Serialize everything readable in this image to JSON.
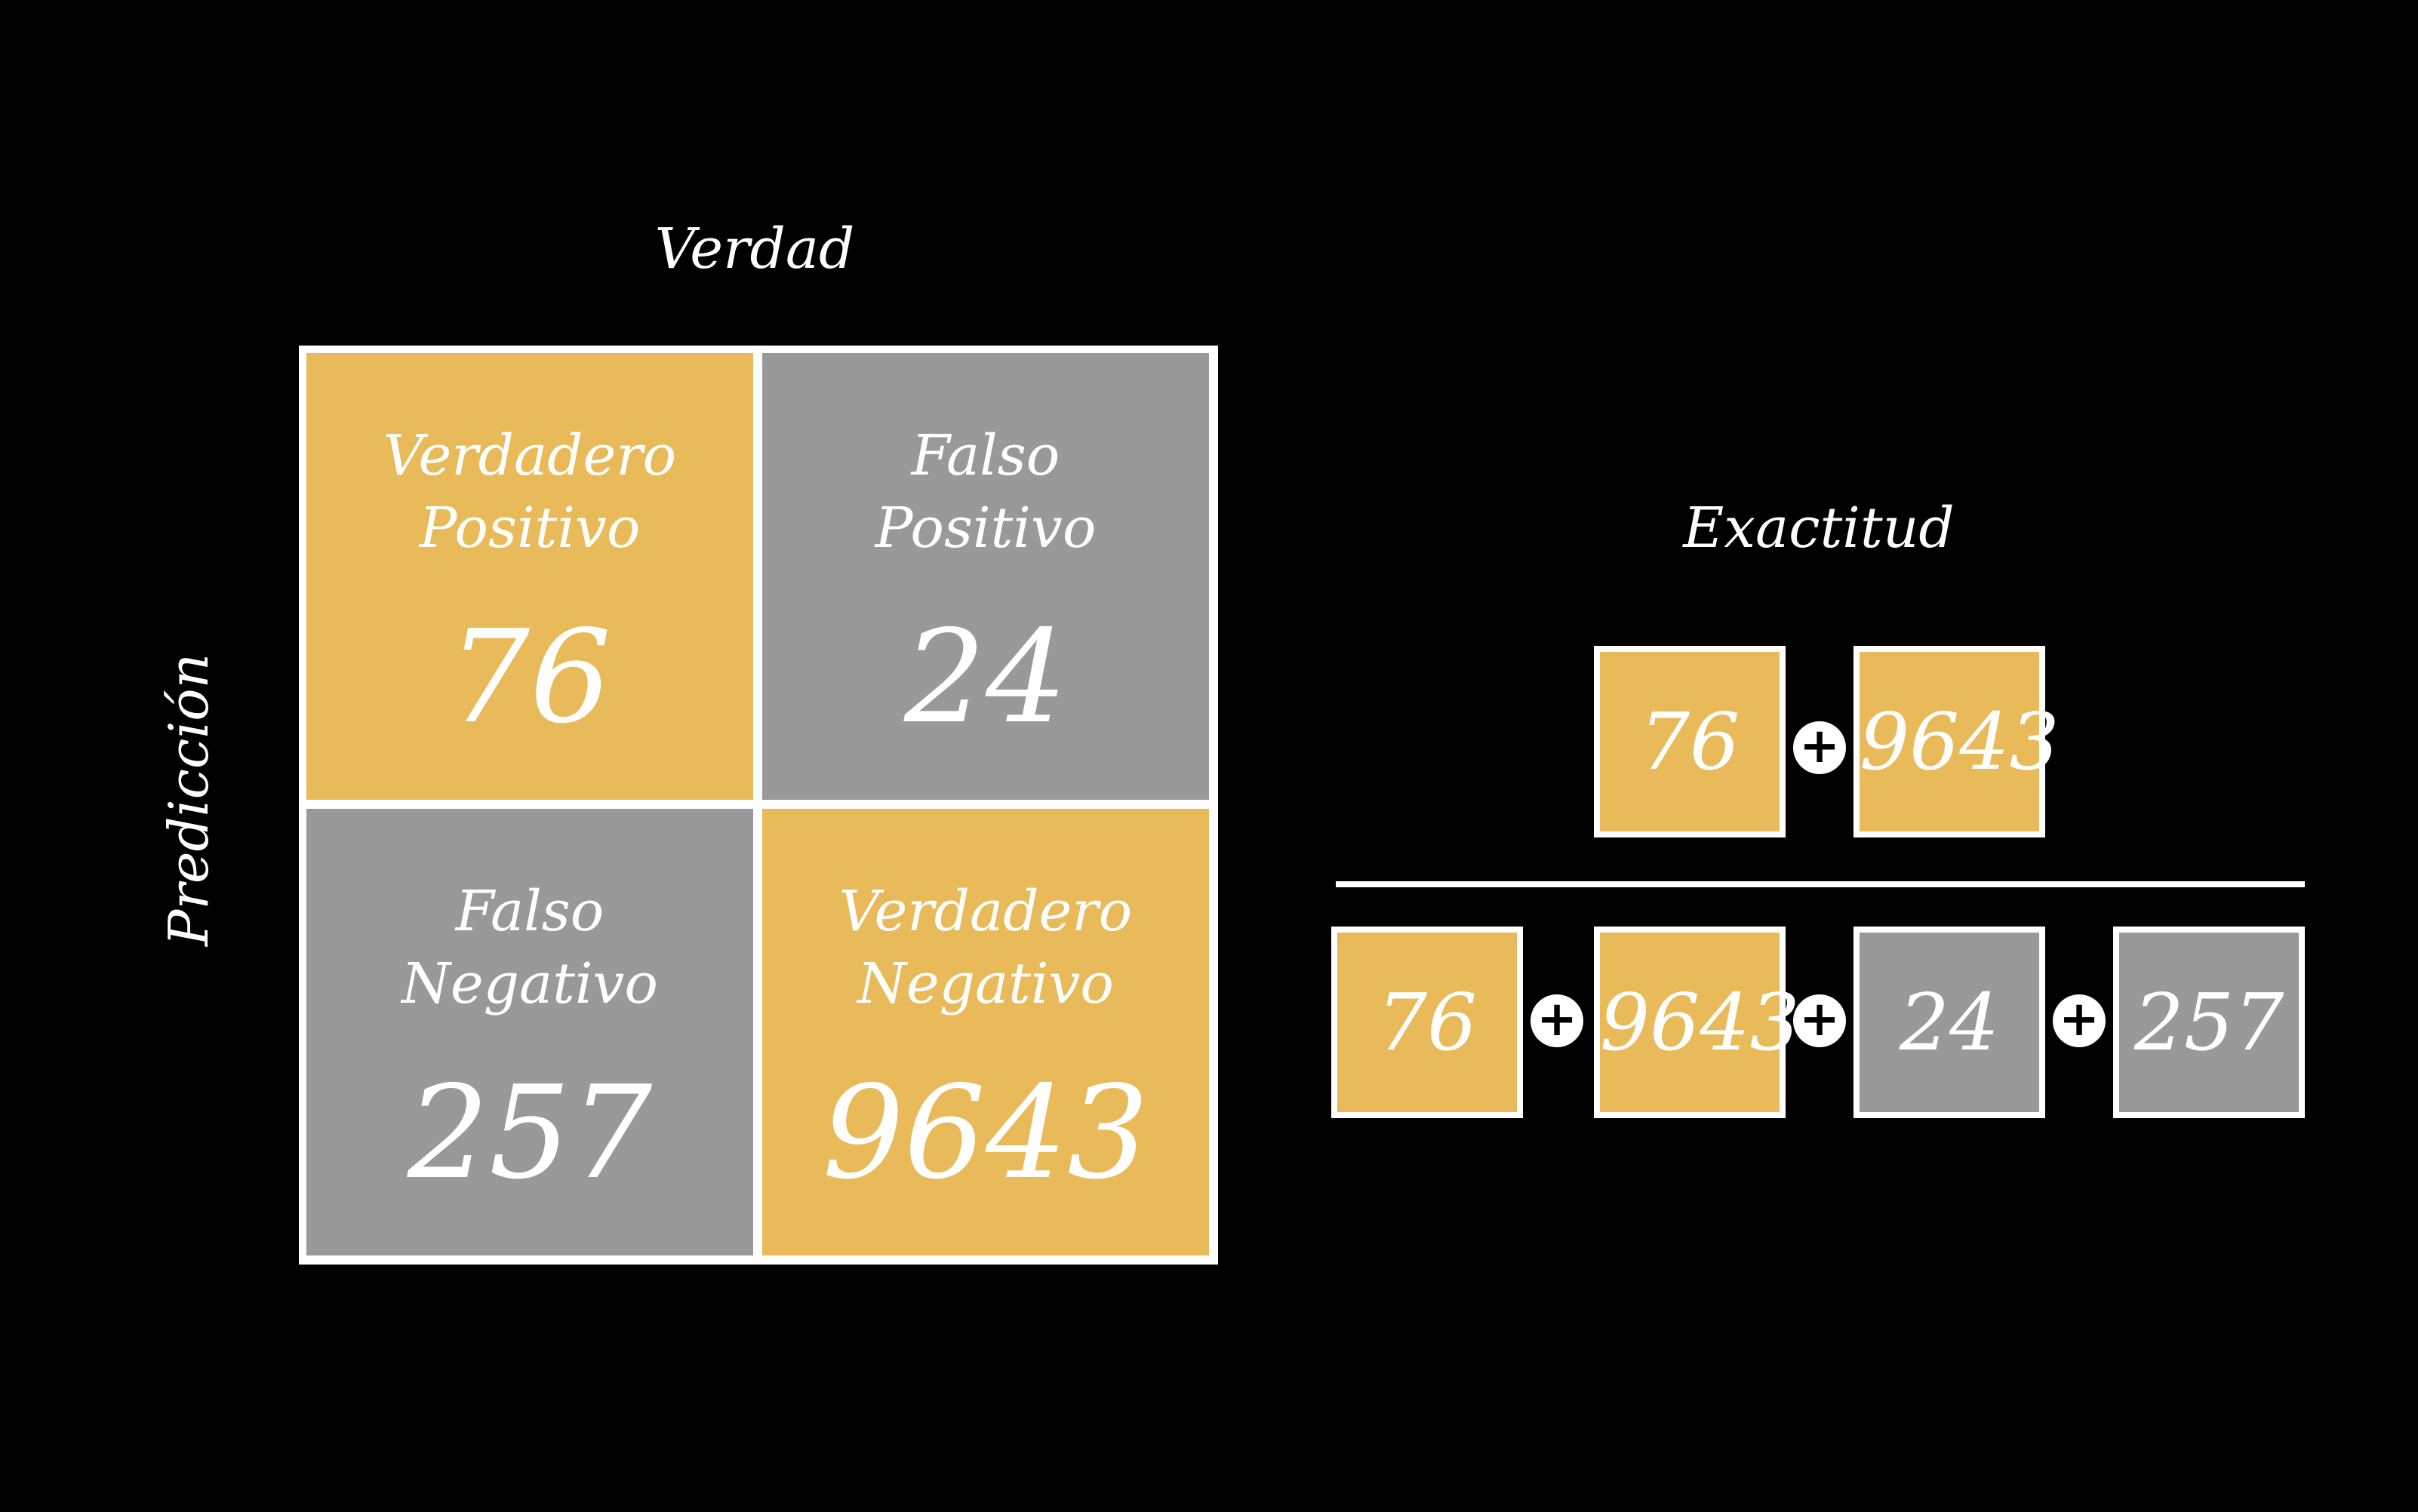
{
  "axes": {
    "truth": "Verdad",
    "prediction": "Predicción"
  },
  "matrix": {
    "cells": [
      {
        "label": "Verdadero\nPositivo",
        "value": "76"
      },
      {
        "label": "Falso\nPositivo",
        "value": "24"
      },
      {
        "label": "Falso\nNegativo",
        "value": "257"
      },
      {
        "label": "Verdadero\nNegativo",
        "value": "9643"
      }
    ]
  },
  "accuracy": {
    "title": "Exactitud",
    "numerator": [
      "76",
      "9643"
    ],
    "denominator": [
      "76",
      "9643",
      "24",
      "257"
    ],
    "operator": "+"
  },
  "colors": {
    "background": "#000000",
    "positive_accent": "#E9BA59",
    "negative_gray": "#999999",
    "border": "#FFFFFF"
  }
}
